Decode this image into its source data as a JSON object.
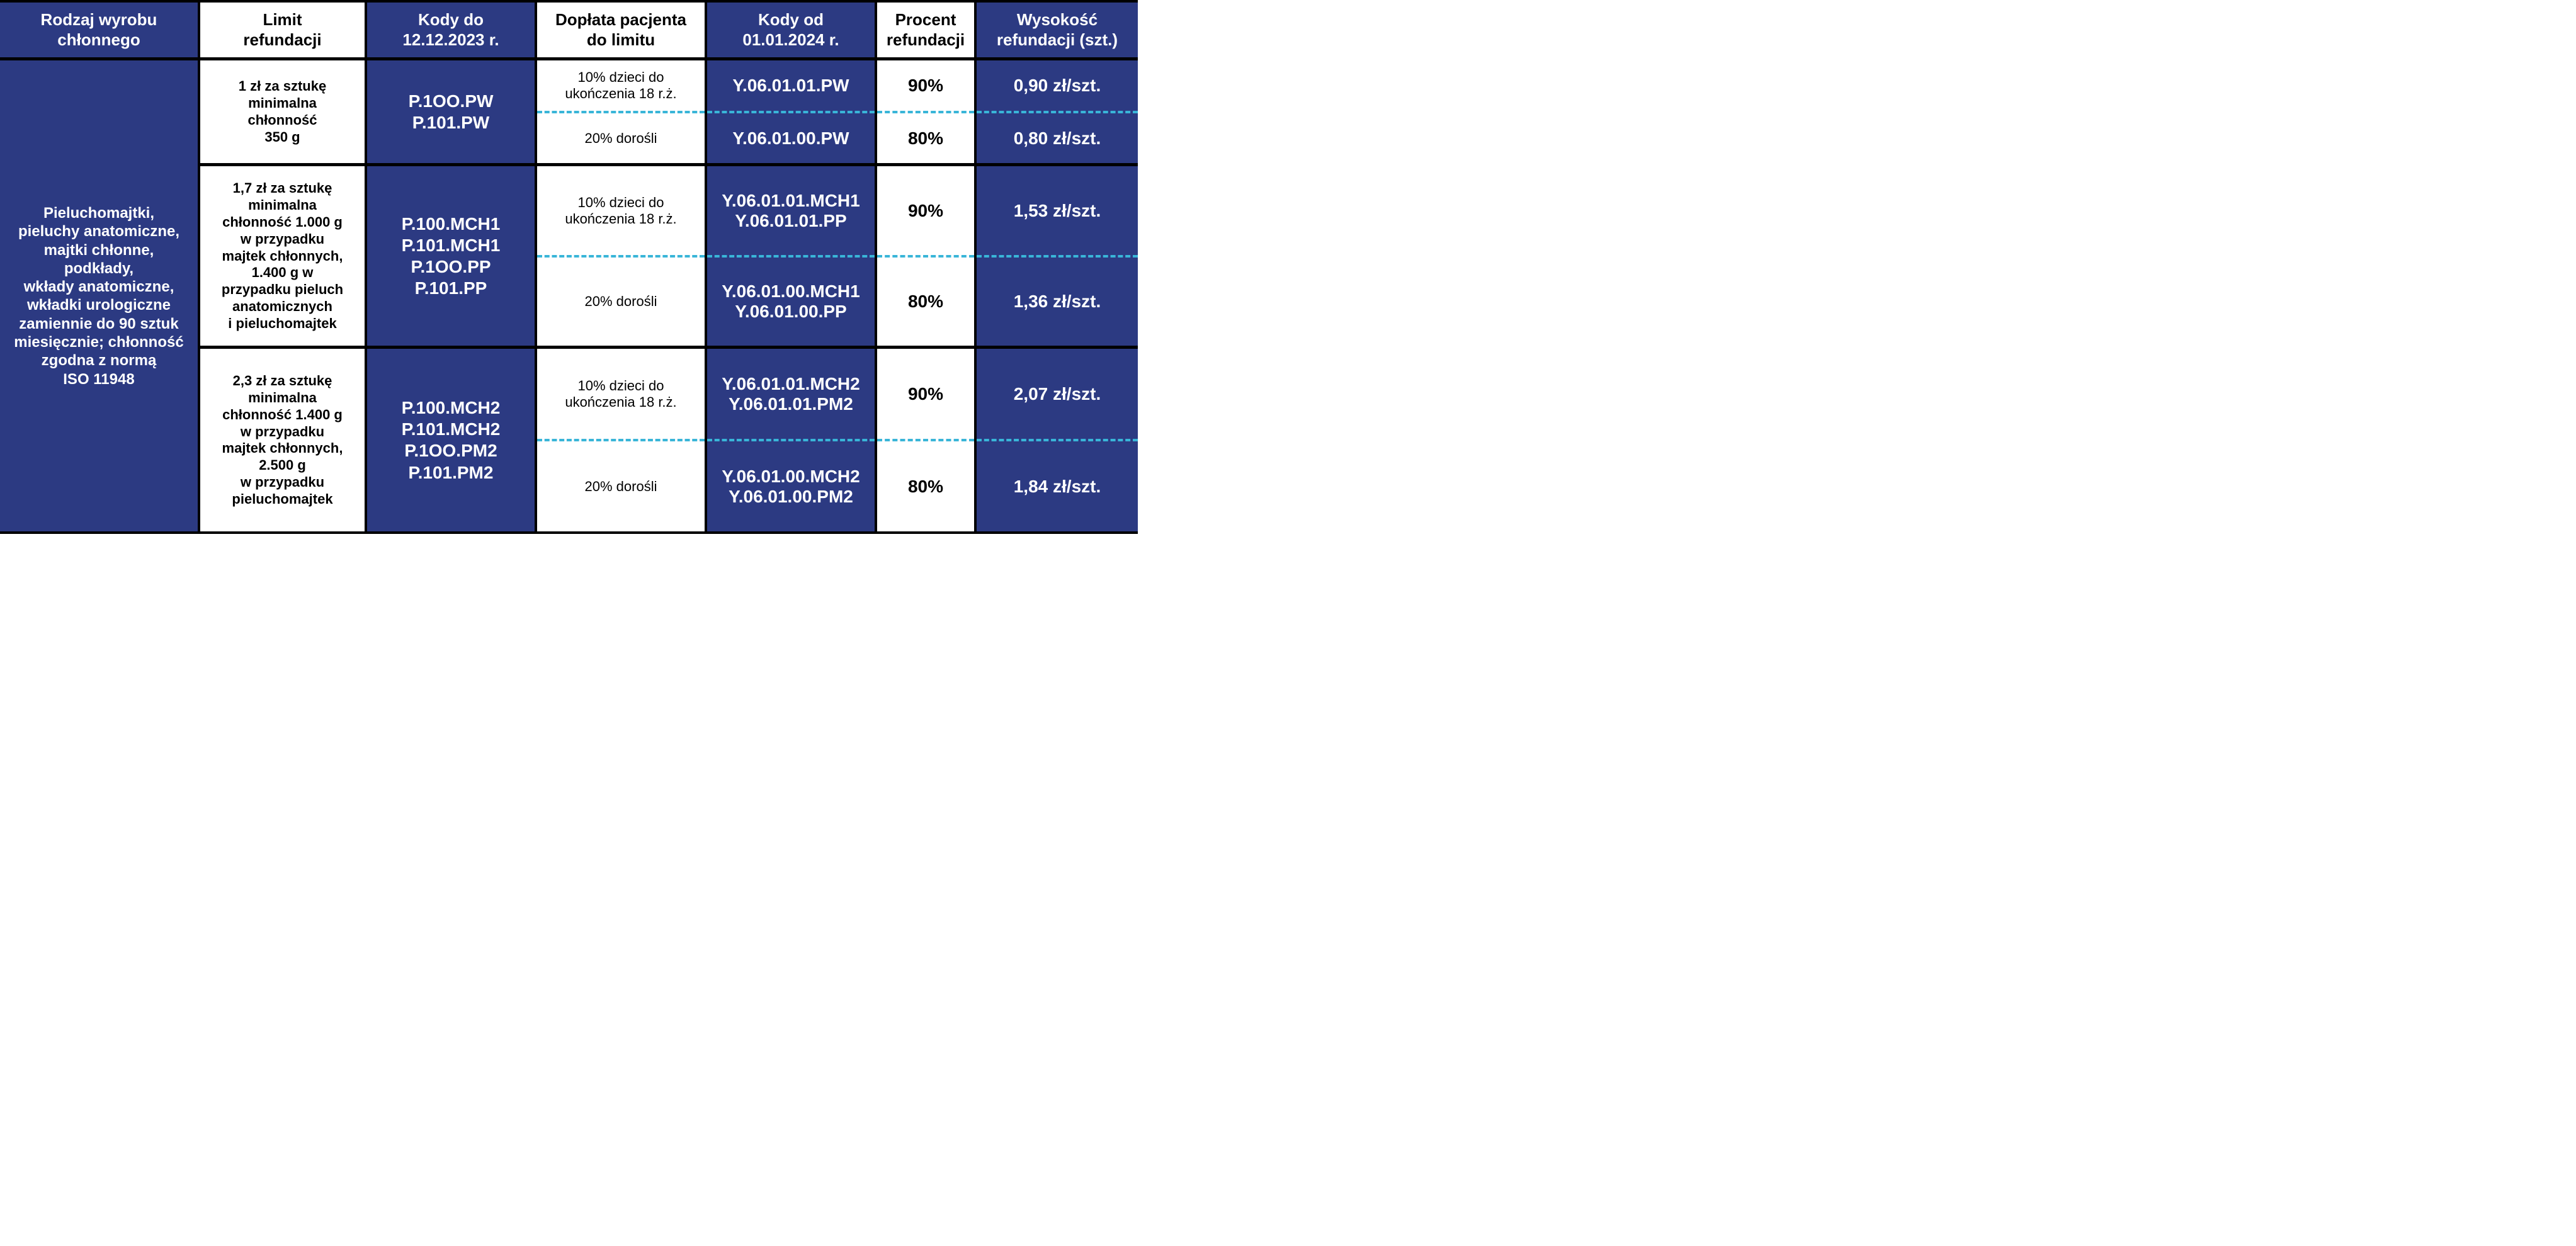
{
  "colors": {
    "blue": "#2c3a82",
    "white": "#ffffff",
    "black": "#000000",
    "dash": "#39b5d8"
  },
  "headers": {
    "c1": "Rodzaj wyrobu\nchłonnego",
    "c2": "Limit\nrefundacji",
    "c3": "Kody do\n12.12.2023 r.",
    "c4": "Dopłata pacjenta\ndo limitu",
    "c5": "Kody od\n01.01.2024 r.",
    "c6": "Procent\nrefundacji",
    "c7": "Wysokość\nrefundacji (szt.)"
  },
  "col1": "Pieluchomajtki,\npieluchy anatomiczne,\nmajtki chłonne,\npodkłady,\nwkłady anatomiczne,\nwkładki urologiczne\nzamiennie do 90 sztuk\nmiesięcznie; chłonność\nzgodna z normą\nISO 11948",
  "bands": [
    {
      "limit": "1 zł za sztukę\nminimalna\nchłonność\n350 g",
      "kody_do": "P.1OO.PW\nP.101.PW",
      "doplata_a": "10% dzieci do\nukończenia 18 r.ż.",
      "doplata_b": "20% dorośli",
      "kody_od_a": "Y.06.01.01.PW",
      "kody_od_b": "Y.06.01.00.PW",
      "procent_a": "90%",
      "procent_b": "80%",
      "wys_a": "0,90 zł/szt.",
      "wys_b": "0,80 zł/szt."
    },
    {
      "limit": "1,7 zł za sztukę\nminimalna\nchłonność 1.000 g\nw przypadku\nmajtek chłonnych,\n1.400 g w\nprzypadku pieluch\nanatomicznych\ni pieluchomajtek",
      "kody_do": "P.100.MCH1\nP.101.MCH1\nP.1OO.PP\nP.101.PP",
      "doplata_a": "10% dzieci do\nukończenia 18 r.ż.",
      "doplata_b": "20% dorośli",
      "kody_od_a": "Y.06.01.01.MCH1\nY.06.01.01.PP",
      "kody_od_b": "Y.06.01.00.MCH1\nY.06.01.00.PP",
      "procent_a": "90%",
      "procent_b": "80%",
      "wys_a": "1,53 zł/szt.",
      "wys_b": "1,36 zł/szt."
    },
    {
      "limit": "2,3 zł za sztukę\nminimalna\nchłonność 1.400 g\nw przypadku\nmajtek chłonnych,\n2.500 g\nw przypadku\npieluchomajtek",
      "kody_do": "P.100.MCH2\nP.101.MCH2\nP.1OO.PM2\nP.101.PM2",
      "doplata_a": "10% dzieci do\nukończenia 18 r.ż.",
      "doplata_b": "20% dorośli",
      "kody_od_a": "Y.06.01.01.MCH2\nY.06.01.01.PM2",
      "kody_od_b": "Y.06.01.00.MCH2\nY.06.01.00.PM2",
      "procent_a": "90%",
      "procent_b": "80%",
      "wys_a": "2,07 zł/szt.",
      "wys_b": "1,84 zł/szt."
    }
  ]
}
